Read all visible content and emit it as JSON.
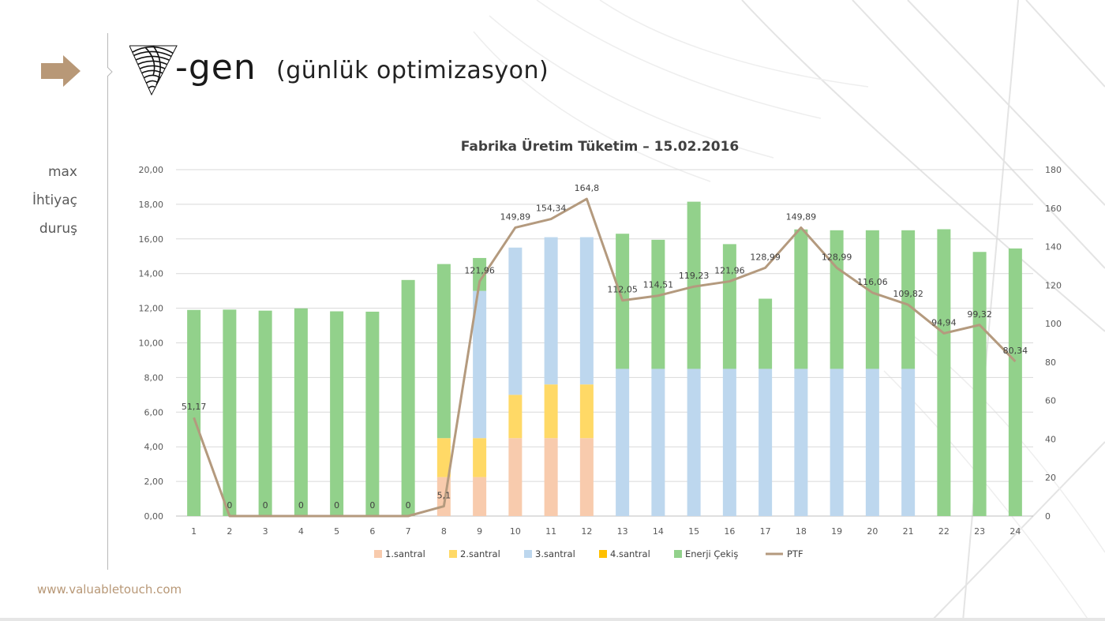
{
  "header": {
    "logo_text": "-gen",
    "subtitle": "(günlük optimizasyon)"
  },
  "side_menu": {
    "items": [
      {
        "label": "max"
      },
      {
        "label": "İhtiyaç"
      },
      {
        "label": "duruş"
      }
    ]
  },
  "footer": {
    "url": "www.valuabletouch.com"
  },
  "colors": {
    "accent_arrow": "#b89877",
    "santral1": "#f8cbad",
    "santral2": "#ffd966",
    "santral3": "#bdd7ee",
    "santral4": "#ffc000",
    "enerji": "#92d18b",
    "ptf": "#b49a7e"
  },
  "chart_data": {
    "type": "bar",
    "stacked": true,
    "title": "Fabrika Üretim Tüketim – 15.02.2016",
    "categories": [
      "1",
      "2",
      "3",
      "4",
      "5",
      "6",
      "7",
      "8",
      "9",
      "10",
      "11",
      "12",
      "13",
      "14",
      "15",
      "16",
      "17",
      "18",
      "19",
      "20",
      "21",
      "22",
      "23",
      "24"
    ],
    "y_left": {
      "min": 0,
      "max": 20,
      "step": 2,
      "labels": [
        "0,00",
        "2,00",
        "4,00",
        "6,00",
        "8,00",
        "10,00",
        "12,00",
        "14,00",
        "16,00",
        "18,00",
        "20,00"
      ]
    },
    "y_right": {
      "min": 0,
      "max": 180,
      "step": 20,
      "labels": [
        "0",
        "20",
        "40",
        "60",
        "80",
        "100",
        "120",
        "140",
        "160",
        "180"
      ]
    },
    "grid": true,
    "legend_position": "bottom",
    "series": [
      {
        "name": "1.santral",
        "color": "#f8cbad",
        "axis": "left",
        "values": [
          0,
          0,
          0,
          0,
          0,
          0,
          0,
          2.25,
          2.25,
          4.5,
          4.5,
          4.5,
          0,
          0,
          0,
          0,
          0,
          0,
          0,
          0,
          0,
          0,
          0,
          0
        ]
      },
      {
        "name": "2.santral",
        "color": "#ffd966",
        "axis": "left",
        "values": [
          0,
          0,
          0,
          0,
          0,
          0,
          0,
          2.25,
          2.25,
          2.5,
          3.1,
          3.1,
          0,
          0,
          0,
          0,
          0,
          0,
          0,
          0,
          0,
          0,
          0,
          0
        ]
      },
      {
        "name": "3.santral",
        "color": "#bdd7ee",
        "axis": "left",
        "values": [
          0,
          0,
          0,
          0,
          0,
          0,
          0,
          0,
          8.5,
          8.5,
          8.5,
          8.5,
          8.5,
          8.5,
          8.5,
          8.5,
          8.5,
          8.5,
          8.5,
          8.5,
          8.5,
          0,
          0,
          0
        ]
      },
      {
        "name": "4.santral",
        "color": "#ffc000",
        "axis": "left",
        "values": [
          0,
          0,
          0,
          0,
          0,
          0,
          0,
          0,
          0,
          0,
          0,
          0,
          0,
          0,
          0,
          0,
          0,
          0,
          0,
          0,
          0,
          0,
          0,
          0
        ]
      },
      {
        "name": "Enerji Çekiş",
        "color": "#92d18b",
        "axis": "left",
        "values": [
          11.9,
          11.92,
          11.86,
          11.99,
          11.82,
          11.8,
          13.63,
          10.05,
          1.9,
          0,
          0,
          0,
          7.8,
          7.45,
          9.65,
          7.2,
          4.05,
          8.05,
          8.0,
          8.0,
          8.0,
          16.56,
          15.25,
          15.45
        ]
      }
    ],
    "line": {
      "name": "PTF",
      "color": "#b49a7e",
      "axis": "right",
      "values": [
        51.17,
        0,
        0,
        0,
        0,
        0,
        0,
        5.1,
        121.96,
        149.89,
        154.34,
        164.8,
        112.05,
        114.51,
        119.23,
        121.96,
        128.99,
        149.89,
        128.99,
        116.06,
        109.82,
        94.94,
        99.32,
        80.34
      ],
      "labels": [
        "51,17",
        "0",
        "0",
        "0",
        "0",
        "0",
        "0",
        "5,1",
        "121,96",
        "149,89",
        "154,34",
        "164,8",
        "112,05",
        "114,51",
        "119,23",
        "121,96",
        "128,99",
        "149,89",
        "128,99",
        "116,06",
        "109,82",
        "94,94",
        "99,32",
        "80,34"
      ]
    }
  }
}
